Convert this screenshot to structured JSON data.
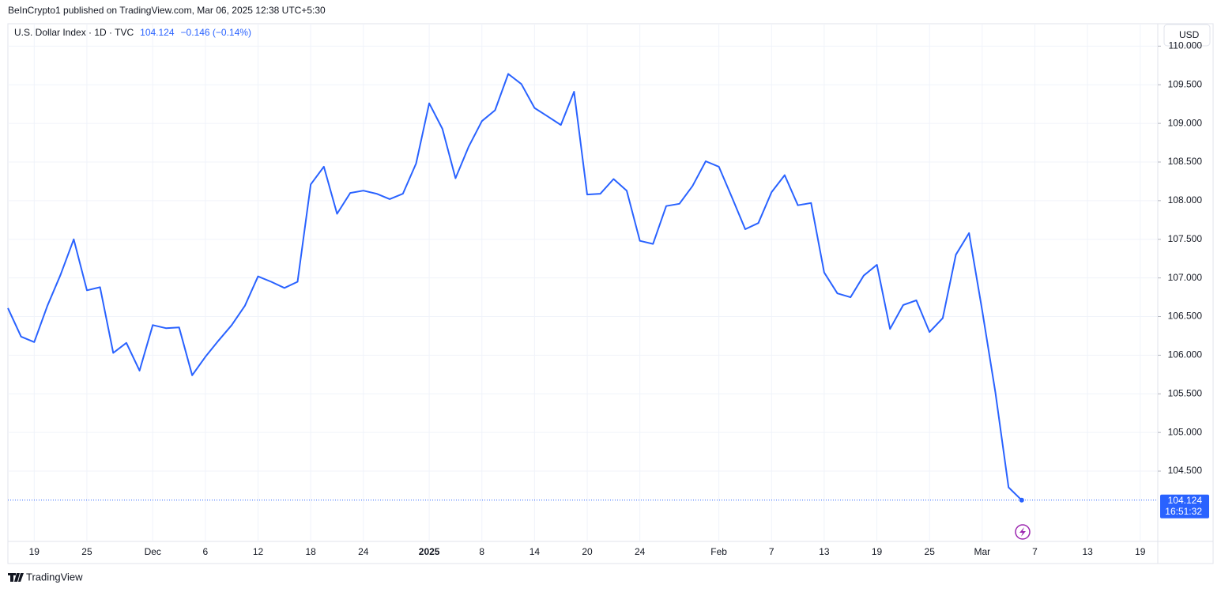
{
  "chart_data": {
    "type": "line",
    "publisher": "BeInCrypto1 published on TradingView.com, Mar 06, 2025 12:38 UTC+5:30",
    "title": "U.S. Dollar Index · 1D · TVC",
    "change_label": "−0.146 (−0.14%)",
    "currency": "USD",
    "countdown": "16:51:32",
    "brand": "TradingView",
    "categories": [
      null,
      null,
      "19",
      null,
      null,
      null,
      "25",
      null,
      null,
      null,
      null,
      "Dec",
      null,
      null,
      null,
      "6",
      null,
      null,
      null,
      "12",
      null,
      null,
      null,
      "18",
      null,
      null,
      null,
      "24",
      null,
      null,
      null,
      null,
      "2025",
      null,
      null,
      null,
      "8",
      null,
      null,
      null,
      "14",
      null,
      null,
      null,
      "20",
      null,
      null,
      null,
      "24",
      null,
      null,
      null,
      null,
      null,
      "Feb",
      null,
      null,
      null,
      "7",
      null,
      null,
      null,
      "13",
      null,
      null,
      null,
      "19",
      null,
      null,
      null,
      "25",
      null,
      null,
      null,
      "Mar",
      null,
      null,
      null,
      "7",
      null,
      null,
      null,
      "13",
      null,
      null,
      null,
      "19"
    ],
    "series": [
      {
        "name": "U.S. Dollar Index",
        "color": "#2962ff",
        "values": [
          106.61,
          106.24,
          106.17,
          106.64,
          107.04,
          107.5,
          106.84,
          106.88,
          106.03,
          106.16,
          105.8,
          106.39,
          106.35,
          106.36,
          105.74,
          105.98,
          106.19,
          106.39,
          106.64,
          107.02,
          106.95,
          106.87,
          106.95,
          108.21,
          108.44,
          107.83,
          108.1,
          108.13,
          108.09,
          108.02,
          108.09,
          108.48,
          109.26,
          108.93,
          108.29,
          108.7,
          109.03,
          109.17,
          109.64,
          109.51,
          109.2,
          109.09,
          108.98,
          109.41,
          108.08,
          108.09,
          108.28,
          108.13,
          107.48,
          107.44,
          107.93,
          107.96,
          108.19,
          108.51,
          108.44,
          108.04,
          107.63,
          107.71,
          108.11,
          108.33,
          107.94,
          107.97,
          107.07,
          106.8,
          106.75,
          107.03,
          107.17,
          106.34,
          106.65,
          106.71,
          106.3,
          106.48,
          107.3,
          107.58,
          106.58,
          105.52,
          104.29,
          104.124,
          null,
          null,
          null,
          null,
          null,
          null,
          null,
          null,
          null
        ]
      }
    ],
    "ylim": [
      103.59,
      110.29
    ],
    "yticks": [
      {
        "value": 104.5,
        "label": "104.500"
      },
      {
        "value": 105,
        "label": "105.000"
      },
      {
        "value": 105.5,
        "label": "105.500"
      },
      {
        "value": 106,
        "label": "106.000"
      },
      {
        "value": 106.5,
        "label": "106.500"
      },
      {
        "value": 107,
        "label": "107.000"
      },
      {
        "value": 107.5,
        "label": "107.500"
      },
      {
        "value": 108,
        "label": "108.000"
      },
      {
        "value": 108.5,
        "label": "108.500"
      },
      {
        "value": 109,
        "label": "109.000"
      },
      {
        "value": 109.5,
        "label": "109.500"
      },
      {
        "value": 110,
        "label": "110.000"
      }
    ],
    "grid": true
  }
}
